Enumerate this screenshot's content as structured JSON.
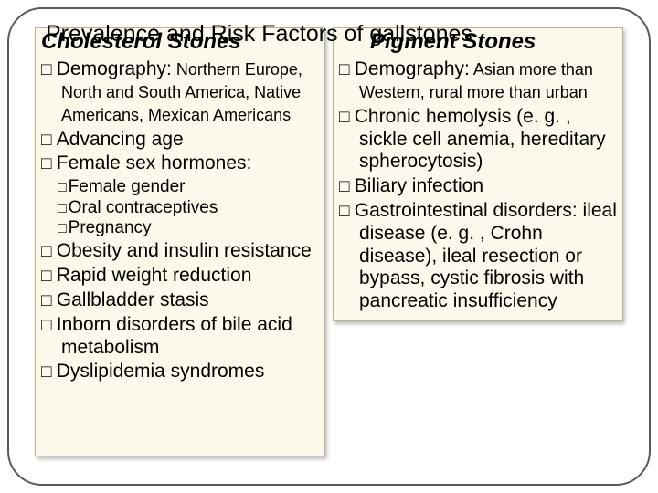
{
  "slide": {
    "title": "Prevalence and Risk Factors of gallstones",
    "background": "#ffffff",
    "box_bg": "#fcf9ec",
    "box_border": "#b9b28a",
    "frame_border": "#5a5a5a"
  },
  "left": {
    "heading": "Cholesterol Stones",
    "items": [
      {
        "lead": "Demography:",
        "rest": " Northern Europe, North and South America, Native Americans, Mexican Americans"
      },
      {
        "lead": "",
        "rest": "Advancing age"
      },
      {
        "lead": "",
        "rest": "Female sex hormones:",
        "sub": [
          "Female gender",
          "Oral contraceptives",
          "Pregnancy"
        ]
      },
      {
        "lead": "",
        "rest": "Obesity and insulin resistance"
      },
      {
        "lead": "",
        "rest": "Rapid weight reduction"
      },
      {
        "lead": "",
        "rest": "Gallbladder stasis"
      },
      {
        "lead": "",
        "rest": "Inborn disorders of bile acid metabolism"
      },
      {
        "lead": "",
        "rest": "Dyslipidemia syndromes"
      }
    ]
  },
  "right": {
    "heading": "Pigment Stones",
    "items": [
      {
        "lead": "Demography:",
        "rest": " Asian more than Western, rural more than urban"
      },
      {
        "lead": "",
        "rest": "Chronic hemolysis (e. g. , sickle cell anemia, hereditary spherocytosis)"
      },
      {
        "lead": "",
        "rest": "Biliary infection"
      },
      {
        "lead": "",
        "rest": "Gastrointestinal disorders: ileal disease (e. g. , Crohn disease), ileal resection or bypass, cystic fibrosis with pancreatic insufficiency"
      }
    ]
  }
}
